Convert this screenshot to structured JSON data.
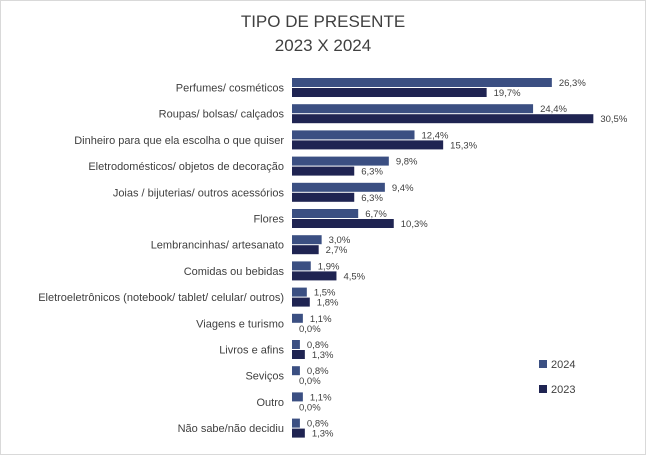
{
  "chart_data": {
    "type": "bar",
    "orientation": "horizontal",
    "title": "TIPO DE PRESENTE",
    "subtitle": "2023 X 2024",
    "categories": [
      "Perfumes/ cosméticos",
      "Roupas/ bolsas/ calçados",
      "Dinheiro para que ela escolha o que quiser",
      "Eletrodomésticos/ objetos de decoração",
      "Joias / bijuterias/ outros acessórios",
      "Flores",
      "Lembrancinhas/ artesanato",
      "Comidas ou bebidas",
      "Eletroeletrônicos (notebook/ tablet/ celular/ outros)",
      "Viagens e turismo",
      "Livros e afins",
      "Seviços",
      "Outro",
      "Não sabe/não decidiu"
    ],
    "series": [
      {
        "name": "2024",
        "color": "#3b4f82",
        "values": [
          26.3,
          24.4,
          12.4,
          9.8,
          9.4,
          6.7,
          3.0,
          1.9,
          1.5,
          1.1,
          0.8,
          0.8,
          1.1,
          0.8
        ],
        "labels": [
          "26,3%",
          "24,4%",
          "12,4%",
          "9,8%",
          "9,4%",
          "6,7%",
          "3,0%",
          "1,9%",
          "1,5%",
          "1,1%",
          "0,8%",
          "0,8%",
          "1,1%",
          "0,8%"
        ]
      },
      {
        "name": "2023",
        "color": "#1f2452",
        "values": [
          19.7,
          30.5,
          15.3,
          6.3,
          6.3,
          10.3,
          2.7,
          4.5,
          1.8,
          0.0,
          1.3,
          0.0,
          0.0,
          1.3
        ],
        "labels": [
          "19,7%",
          "30,5%",
          "15,3%",
          "6,3%",
          "6,3%",
          "10,3%",
          "2,7%",
          "4,5%",
          "1,8%",
          "0,0%",
          "1,3%",
          "0,0%",
          "0,0%",
          "1,3%"
        ]
      }
    ],
    "legend_position": "bottom-right",
    "grid": false
  }
}
